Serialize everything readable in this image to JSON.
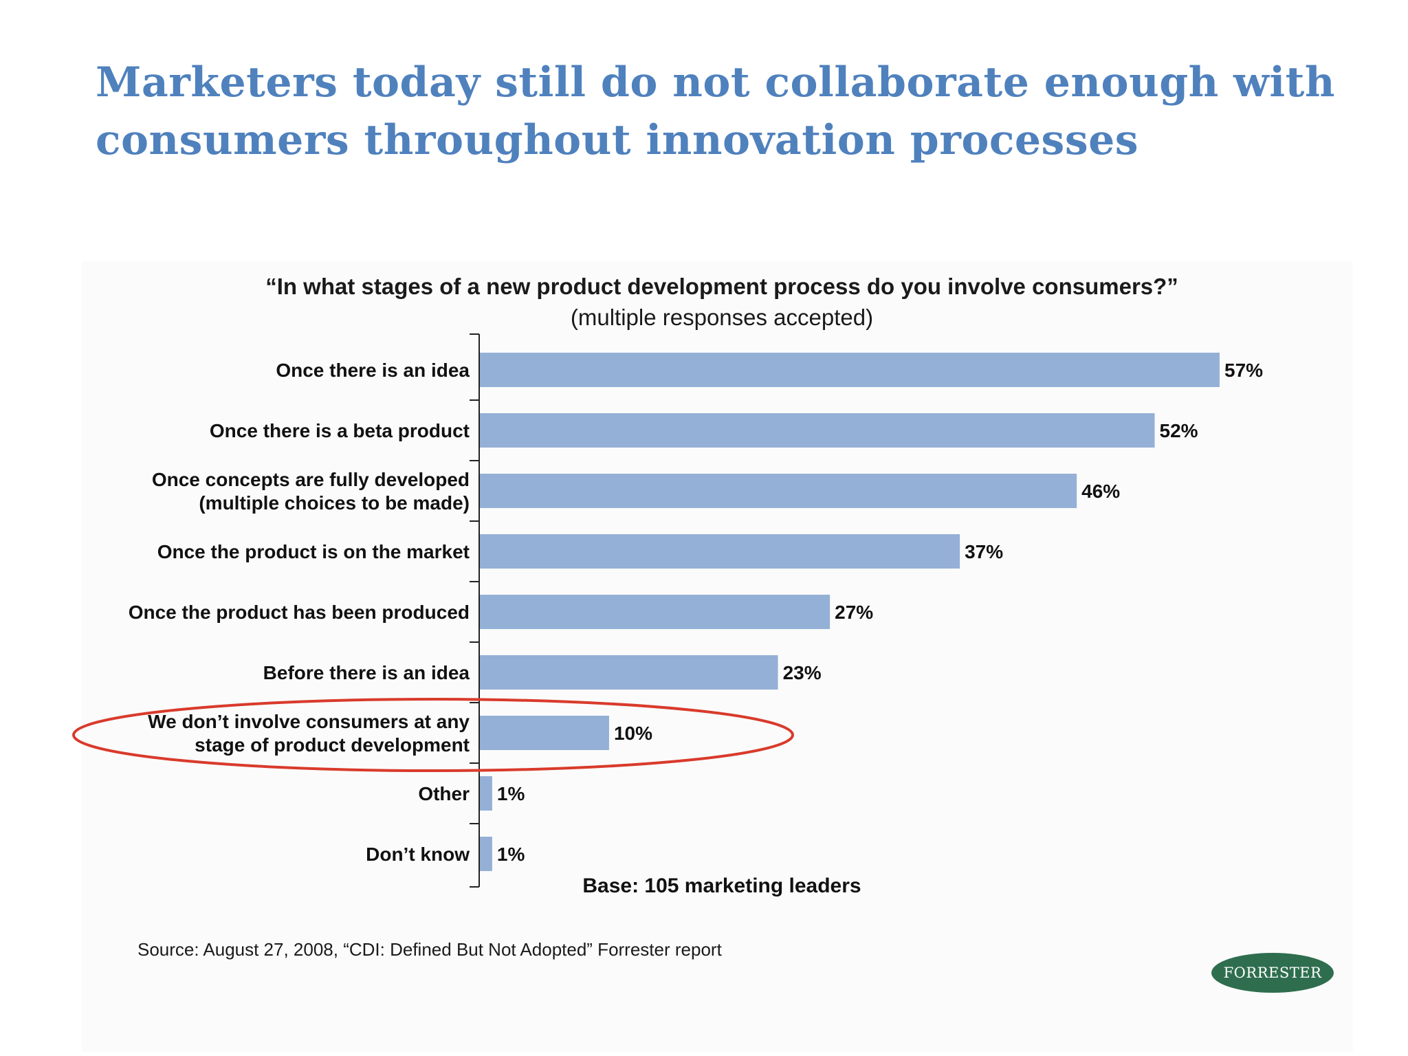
{
  "slide": {
    "title_lines": [
      "Marketers today still do not collaborate enough with",
      "consumers throughout innovation processes"
    ],
    "base_note": "Base: 105 marketing leaders",
    "source": "Source: August 27, 2008, “CDI: Defined But Not Adopted” Forrester report",
    "logo_text": "FORRESTER",
    "logo_color": "#2e6e4e",
    "title_color": "#4f81bd"
  },
  "chart_data": {
    "type": "bar",
    "orientation": "horizontal",
    "title": "“In what stages of a new product development process do you involve consumers?”",
    "subtitle": "(multiple responses accepted)",
    "xlabel": "",
    "ylabel": "",
    "categories": [
      [
        "Once there is an idea"
      ],
      [
        "Once there is a beta product"
      ],
      [
        "Once concepts are fully developed",
        "(multiple choices to be made)"
      ],
      [
        "Once the product is on the market"
      ],
      [
        "Once the product has been produced"
      ],
      [
        "Before there is an idea"
      ],
      [
        "We don’t involve consumers at any",
        "stage of product development"
      ],
      [
        "Other"
      ],
      [
        "Don’t know"
      ]
    ],
    "values": [
      57,
      52,
      46,
      37,
      27,
      23,
      10,
      1,
      1
    ],
    "value_labels": [
      "57%",
      "52%",
      "46%",
      "37%",
      "27%",
      "23%",
      "10%",
      "1%",
      "1%"
    ],
    "unit": "%",
    "xlim": [
      0,
      57
    ],
    "grid": false,
    "legend": "none",
    "bar_color": "#95b0d6",
    "highlighted_category_index": 6,
    "highlight_color": "#d93a2b"
  }
}
